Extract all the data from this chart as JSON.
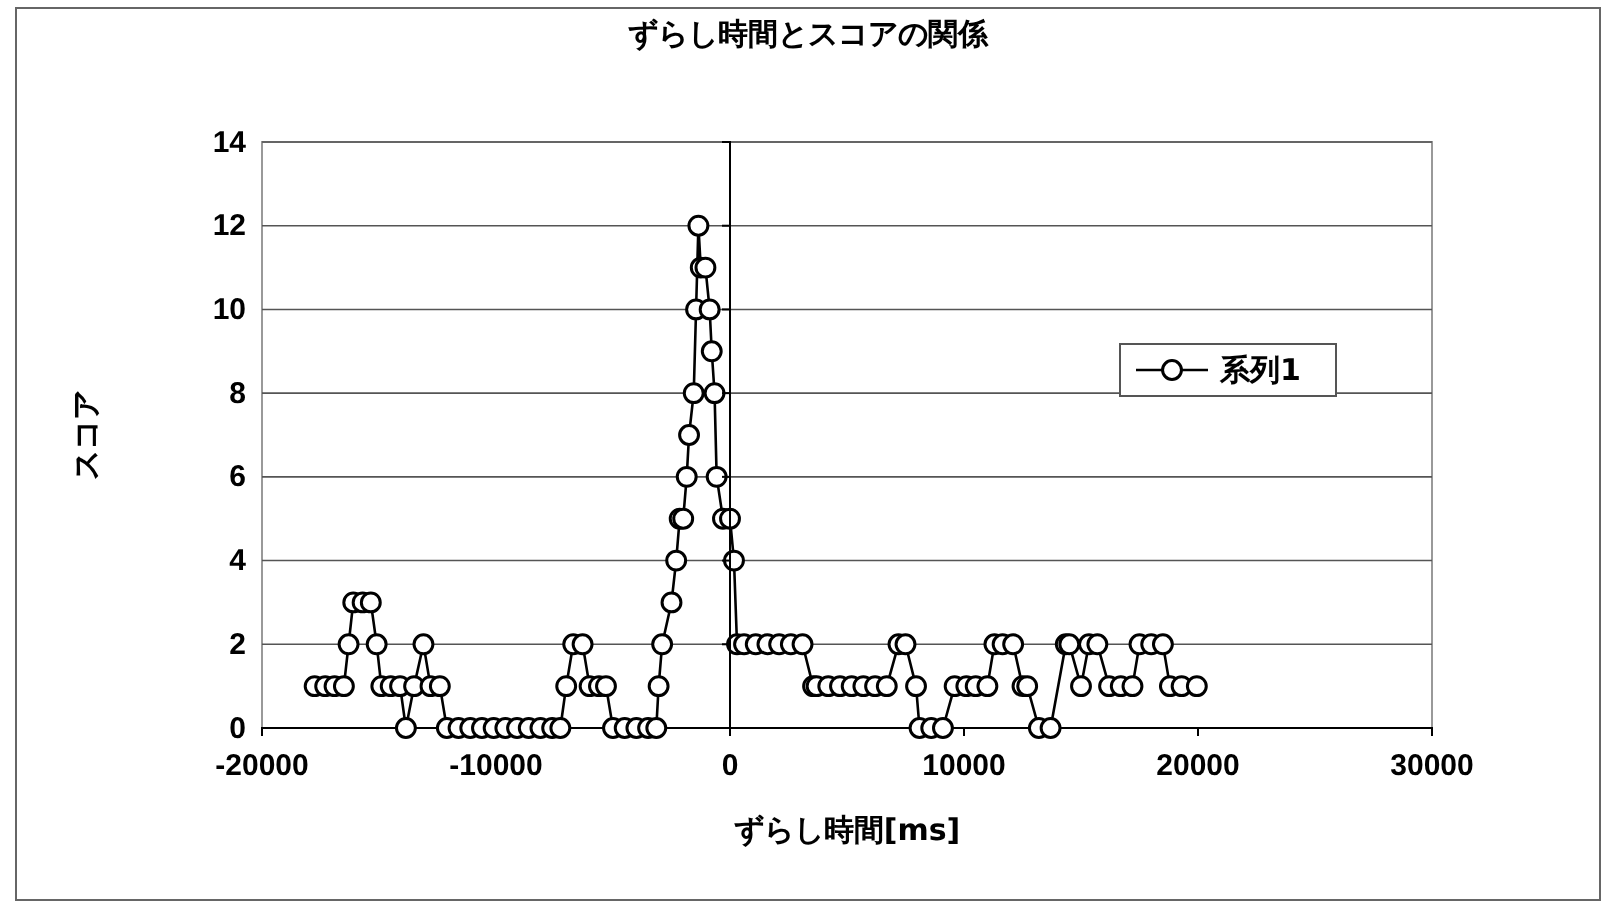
{
  "chart_data": {
    "type": "line",
    "title": "ずらし時間とスコアの関係",
    "xlabel": "ずらし時間[ms]",
    "ylabel": "スコア",
    "x": [
      -17750,
      -17300,
      -16900,
      -16500,
      -16300,
      -16100,
      -15700,
      -15350,
      -15100,
      -14900,
      -14500,
      -14100,
      -13850,
      -13500,
      -13100,
      -12800,
      -12400,
      -12100,
      -11600,
      -11100,
      -10600,
      -10100,
      -9600,
      -9100,
      -8600,
      -8100,
      -7600,
      -7250,
      -7000,
      -6700,
      -6300,
      -6000,
      -5600,
      -5300,
      -5000,
      -4500,
      -4000,
      -3500,
      -3150,
      -3050,
      -2900,
      -2500,
      -2300,
      -2150,
      -2000,
      -1850,
      -1750,
      -1550,
      -1450,
      -1350,
      -1250,
      -1050,
      -870,
      -780,
      -660,
      -570,
      -300,
      0,
      170,
      300,
      600,
      1100,
      1600,
      2100,
      2600,
      3100,
      3550,
      3700,
      4200,
      4700,
      5200,
      5700,
      6200,
      6700,
      7200,
      7500,
      7950,
      8100,
      8600,
      9100,
      9600,
      10100,
      10500,
      11000,
      11300,
      11650,
      12100,
      12500,
      12700,
      13200,
      13700,
      14350,
      14500,
      15000,
      15340,
      15700,
      16200,
      16700,
      17200,
      17500,
      18000,
      18500,
      18800,
      19300,
      19950
    ],
    "series": [
      {
        "name": "系列1",
        "color": "#000000",
        "values": [
          1,
          1,
          1,
          1,
          2,
          3,
          3,
          3,
          2,
          1,
          1,
          1,
          0,
          1,
          2,
          1,
          1,
          0,
          0,
          0,
          0,
          0,
          0,
          0,
          0,
          0,
          0,
          0,
          1,
          2,
          2,
          1,
          1,
          1,
          0,
          0,
          0,
          0,
          0,
          1,
          2,
          3,
          4,
          5,
          5,
          6,
          7,
          8,
          10,
          12,
          11,
          11,
          10,
          9,
          8,
          6,
          5,
          5,
          4,
          2,
          2,
          2,
          2,
          2,
          2,
          2,
          1,
          1,
          1,
          1,
          1,
          1,
          1,
          1,
          2,
          2,
          1,
          0,
          0,
          0,
          1,
          1,
          1,
          1,
          2,
          2,
          2,
          1,
          1,
          0,
          0,
          2,
          2,
          1,
          2,
          2,
          1,
          1,
          1,
          2,
          2,
          2,
          1,
          1,
          1
        ]
      }
    ],
    "xlim": [
      -20000,
      30000
    ],
    "xticks": [
      -20000,
      -10000,
      0,
      10000,
      20000,
      30000
    ],
    "ylim": [
      0,
      14
    ],
    "yticks": [
      0,
      2,
      4,
      6,
      8,
      10,
      12,
      14
    ],
    "grid": "y",
    "legend": "right",
    "marker": "circle",
    "line_style": "solid"
  }
}
